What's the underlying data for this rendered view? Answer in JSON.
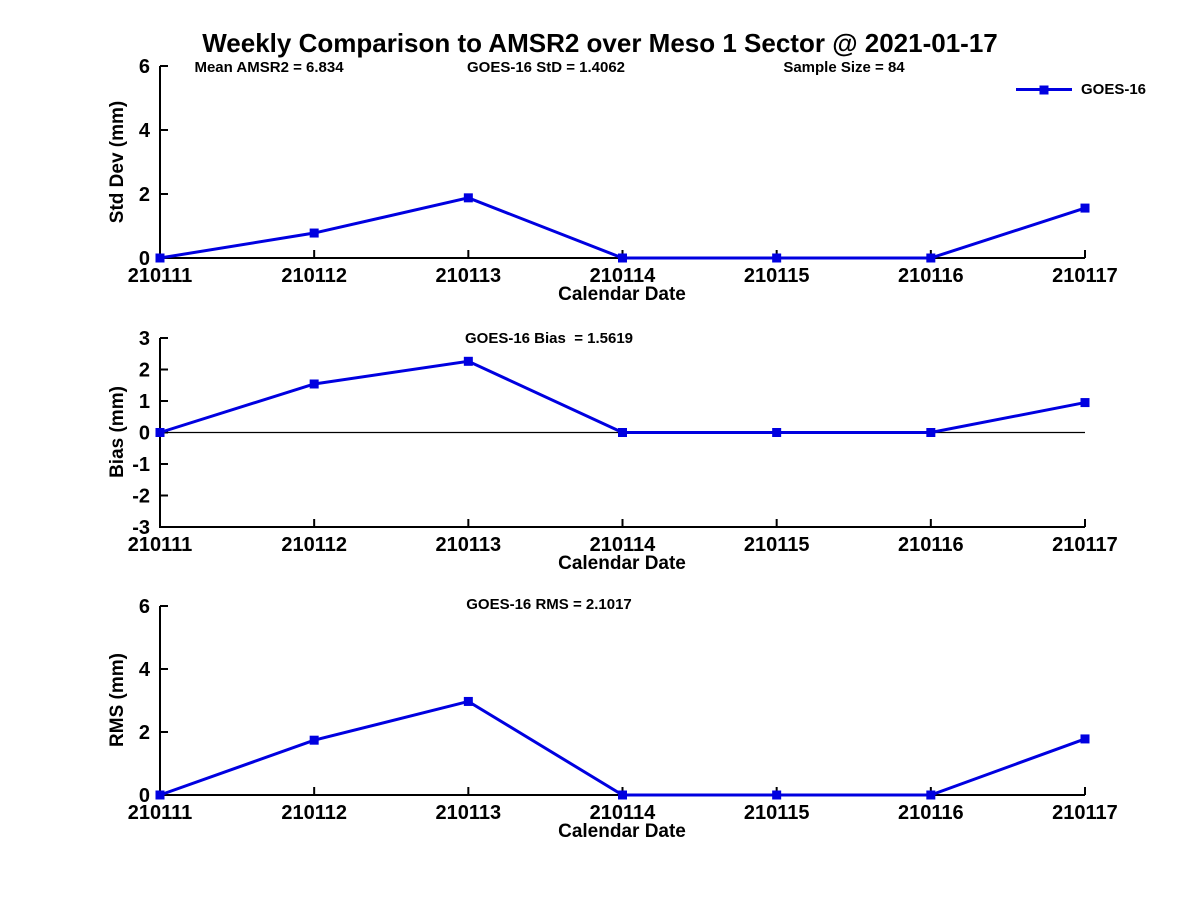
{
  "figure": {
    "title": "Weekly Comparison to AMSR2 over Meso 1 Sector @ 2021-01-17"
  },
  "legend": {
    "label": "GOES-16"
  },
  "colors": {
    "series_line": "#0000e0",
    "axis": "#000000",
    "background": "#ffffff"
  },
  "chart_data": [
    {
      "type": "line",
      "name": "std-dev",
      "categories": [
        "210111",
        "210112",
        "210113",
        "210114",
        "210115",
        "210116",
        "210117"
      ],
      "series": [
        {
          "name": "GOES-16",
          "values": [
            0,
            0.78,
            1.88,
            0,
            0,
            0,
            1.56
          ],
          "marker": "square"
        }
      ],
      "annotations": [
        "Mean AMSR2 = 6.834",
        "GOES-16 StD = 1.4062",
        "Sample Size = 84"
      ],
      "xlabel": "Calendar Date",
      "ylabel": "Std Dev (mm)",
      "ylim": [
        0,
        6
      ],
      "yticks": [
        0,
        2,
        4,
        6
      ],
      "zero_line": false,
      "grid": false,
      "legend_position": "top-right"
    },
    {
      "type": "line",
      "name": "bias",
      "categories": [
        "210111",
        "210112",
        "210113",
        "210114",
        "210115",
        "210116",
        "210117"
      ],
      "series": [
        {
          "name": "GOES-16",
          "values": [
            0,
            1.54,
            2.26,
            0,
            0,
            0,
            0.95
          ],
          "marker": "square"
        }
      ],
      "annotations": [
        "GOES-16 Bias  = 1.5619"
      ],
      "xlabel": "Calendar Date",
      "ylabel": "Bias (mm)",
      "ylim": [
        -3,
        3
      ],
      "yticks": [
        -3,
        -2,
        -1,
        0,
        1,
        2,
        3
      ],
      "zero_line": true,
      "grid": false
    },
    {
      "type": "line",
      "name": "rms",
      "categories": [
        "210111",
        "210112",
        "210113",
        "210114",
        "210115",
        "210116",
        "210117"
      ],
      "series": [
        {
          "name": "GOES-16",
          "values": [
            0,
            1.74,
            2.97,
            0,
            0,
            0,
            1.78
          ],
          "marker": "square"
        }
      ],
      "annotations": [
        "GOES-16 RMS = 2.1017"
      ],
      "xlabel": "Calendar Date",
      "ylabel": "RMS (mm)",
      "ylim": [
        0,
        6
      ],
      "yticks": [
        0,
        2,
        4,
        6
      ],
      "zero_line": false,
      "grid": false
    }
  ]
}
